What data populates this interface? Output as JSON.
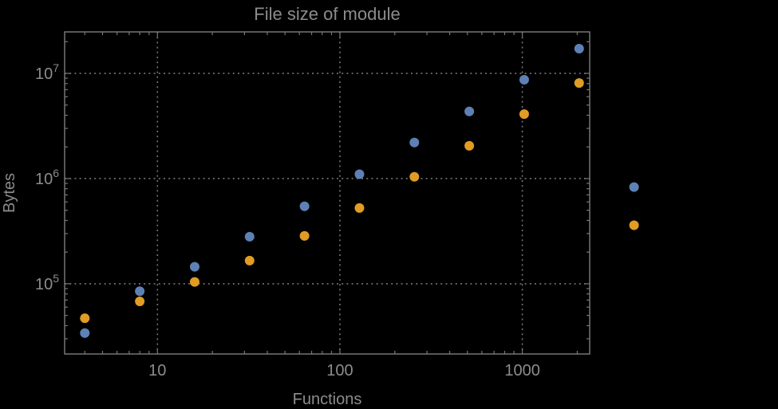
{
  "style": {
    "background": "#000000",
    "frame_color": "#767676",
    "grid_color": "#767676",
    "text_color": "#8c8c8c"
  },
  "chart_data": {
    "type": "scatter",
    "title": "File size of module",
    "xlabel": "Functions",
    "ylabel": "Bytes",
    "x_scale": "log10",
    "y_scale": "log10",
    "grid": "dotted gray lines at decade ticks, framed plot, minor log ticks on all four edges",
    "legend": "none",
    "xlim": [
      3.1,
      2340
    ],
    "ylim": [
      21500,
      24800000
    ],
    "x_ticks": [
      {
        "value": 10,
        "label": "10"
      },
      {
        "value": 100,
        "label": "100"
      },
      {
        "value": 1000,
        "label": "1000"
      }
    ],
    "y_ticks": [
      {
        "value": 100000,
        "label": "10^5"
      },
      {
        "value": 1000000,
        "label": "10^6"
      },
      {
        "value": 10000000,
        "label": "10^7"
      }
    ],
    "x": [
      4,
      8,
      16,
      32,
      64,
      128,
      256,
      512,
      1024,
      2048,
      4096
    ],
    "series": [
      {
        "name": "series-1",
        "color": "#5e81b5",
        "values": [
          34000,
          85000,
          145000,
          280000,
          545000,
          1100000,
          2200000,
          4350000,
          8700000,
          17200000,
          830000
        ]
      },
      {
        "name": "series-2",
        "color": "#e19c24",
        "values": [
          47000,
          68000,
          104000,
          166000,
          285000,
          525000,
          1040000,
          2050000,
          4100000,
          8100000,
          360000
        ]
      }
    ],
    "marker_size_px": 12
  }
}
